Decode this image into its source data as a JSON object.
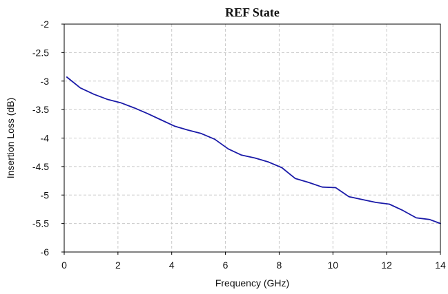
{
  "chart_data": {
    "type": "line",
    "title": "REF State",
    "xlabel": "Frequency (GHz)",
    "ylabel": "Insertion Loss (dB)",
    "xlim": [
      0,
      14
    ],
    "ylim": [
      -6,
      -2
    ],
    "xticks": [
      0,
      2,
      4,
      6,
      8,
      10,
      12,
      14
    ],
    "yticks": [
      -2,
      -2.5,
      -3,
      -3.5,
      -4,
      -4.5,
      -5,
      -5.5,
      -6
    ],
    "grid": true,
    "legend": "none",
    "series": [
      {
        "color": "#1a1aa8",
        "x": [
          0.1,
          0.6,
          1.1,
          1.6,
          2.1,
          2.6,
          3.1,
          3.6,
          4.1,
          4.6,
          5.1,
          5.6,
          6.1,
          6.6,
          7.1,
          7.6,
          8.1,
          8.6,
          9.1,
          9.6,
          10.1,
          10.6,
          11.1,
          11.6,
          12.1,
          12.6,
          13.1,
          13.6,
          14.0
        ],
        "y": [
          -2.93,
          -3.12,
          -3.23,
          -3.32,
          -3.38,
          -3.47,
          -3.57,
          -3.68,
          -3.79,
          -3.86,
          -3.92,
          -4.02,
          -4.19,
          -4.3,
          -4.35,
          -4.42,
          -4.52,
          -4.71,
          -4.78,
          -4.86,
          -4.87,
          -5.03,
          -5.08,
          -5.13,
          -5.16,
          -5.27,
          -5.4,
          -5.43,
          -5.5
        ]
      }
    ]
  }
}
